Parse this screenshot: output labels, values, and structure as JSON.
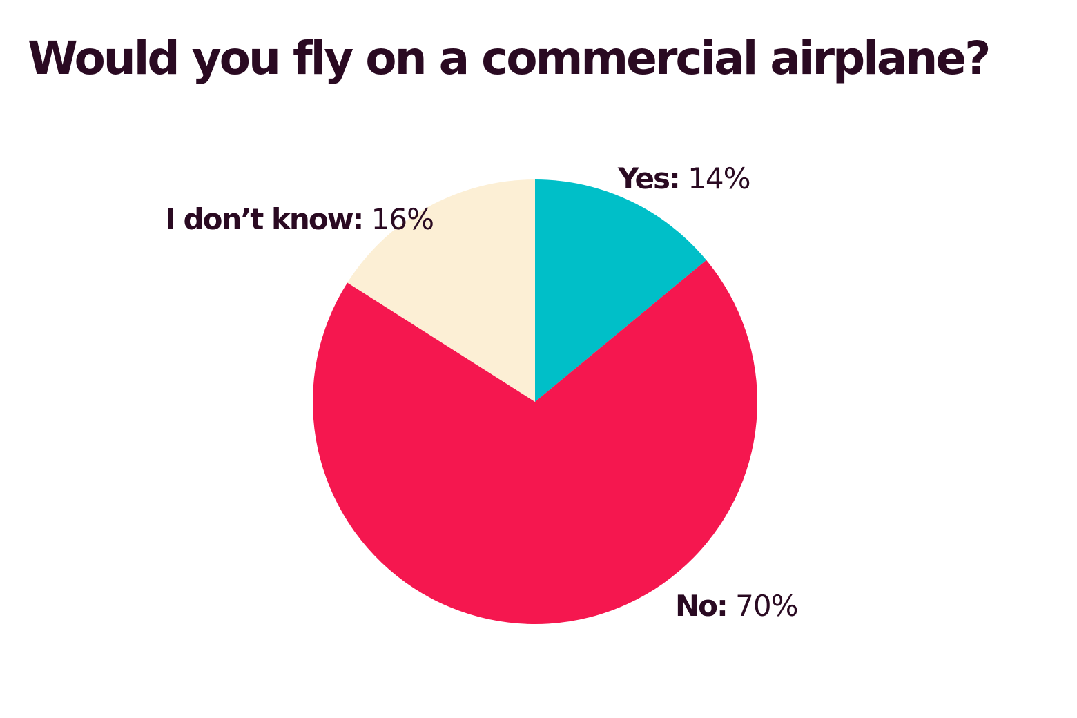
{
  "chart_data": {
    "type": "pie",
    "title": "Would you fly on a commercial airplane?",
    "slices": [
      {
        "name": "Yes",
        "label": "Yes:",
        "value": 14,
        "value_label": "14%",
        "color": "#00bfc8"
      },
      {
        "name": "No",
        "label": "No:",
        "value": 70,
        "value_label": "70%",
        "color": "#f5174f"
      },
      {
        "name": "I don't know",
        "label": "I don’t know:",
        "value": 16,
        "value_label": "16%",
        "color": "#fcefd5"
      }
    ],
    "start_angle": "12 o'clock",
    "direction": "clockwise",
    "legend": "none"
  }
}
